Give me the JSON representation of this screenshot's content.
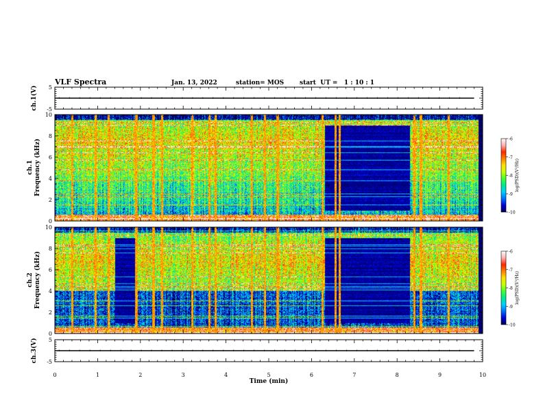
{
  "header": {
    "title": "VLF Spectra",
    "date": "Jan. 13, 2022",
    "station": "station= MOS",
    "start": "start  UT =   1 : 10 : 1"
  },
  "colorbar": {
    "label": "log(PSD)(V²/Hz)",
    "ticks": [
      "-6",
      "-7",
      "-8",
      "-9",
      "-10"
    ],
    "colors": [
      "#000050",
      "#0000d8",
      "#0070ff",
      "#00d0ff",
      "#00e890",
      "#40ff30",
      "#c8ff00",
      "#ffe000",
      "#ff8000",
      "#ff2800",
      "#ffb0b0",
      "#ffffff"
    ]
  },
  "chart_data": [
    {
      "type": "line",
      "name": "ch1-trace",
      "ylabel": "ch.1(V)",
      "ylim": [
        -5,
        5
      ],
      "yticks": [
        "5",
        "-5"
      ],
      "xlim": [
        0,
        10
      ],
      "x": [
        0,
        1,
        2,
        3,
        4,
        5,
        6,
        7,
        8,
        9,
        9.8
      ],
      "y": [
        0,
        0,
        0,
        0,
        0,
        0,
        0,
        0,
        0,
        0,
        0
      ]
    },
    {
      "type": "heatmap",
      "name": "ch1-spectrogram",
      "ylabel": "ch.1\nFrequency (kHz)",
      "ylim": [
        0,
        10
      ],
      "yticks": [
        "0",
        "2",
        "4",
        "6",
        "8",
        "10"
      ],
      "xlim": [
        0,
        10
      ],
      "zlim": [
        -10,
        -6
      ],
      "band": {
        "low_khz": 0.5,
        "high_khz": 9.5,
        "peak_khz": 7.5
      },
      "quiet_intervals_min": [
        [
          6.3,
          8.3
        ]
      ],
      "spikes_min": [
        0.4,
        0.95,
        1.25,
        1.9,
        2.3,
        2.5,
        3.2,
        3.6,
        3.75,
        4.6,
        4.9,
        5.2,
        6.25,
        6.55,
        6.65,
        8.4,
        8.55,
        9.2
      ]
    },
    {
      "type": "heatmap",
      "name": "ch2-spectrogram",
      "ylabel": "ch.2\nFrequency (kHz)",
      "ylim": [
        0,
        10
      ],
      "yticks": [
        "0",
        "2",
        "4",
        "6",
        "8",
        "10"
      ],
      "xlim": [
        0,
        10
      ],
      "zlim": [
        -10,
        -6
      ],
      "band": {
        "low_khz": 4.0,
        "high_khz": 9.5,
        "peak_khz": 6.8
      },
      "quiet_intervals_min": [
        [
          1.4,
          1.9
        ],
        [
          6.3,
          8.3
        ]
      ],
      "spikes_min": [
        0.4,
        0.95,
        1.25,
        1.9,
        2.3,
        2.5,
        3.2,
        3.6,
        3.75,
        4.6,
        4.9,
        5.2,
        6.25,
        6.55,
        6.65,
        8.4,
        8.55,
        9.2
      ]
    },
    {
      "type": "line",
      "name": "ch3-trace",
      "ylabel": "ch.3(V)",
      "ylim": [
        -5,
        5
      ],
      "yticks": [
        "5",
        "-5"
      ],
      "xlim": [
        0,
        10
      ],
      "xticks": [
        "0",
        "1",
        "2",
        "3",
        "4",
        "5",
        "6",
        "7",
        "8",
        "9",
        "10"
      ],
      "xlabel": "Time (min)",
      "x": [
        0,
        1,
        2,
        3,
        4,
        5,
        6,
        7,
        8,
        9,
        9.8
      ],
      "y": [
        0,
        0,
        0,
        0,
        0,
        0,
        0,
        0,
        0,
        0,
        0
      ]
    }
  ]
}
